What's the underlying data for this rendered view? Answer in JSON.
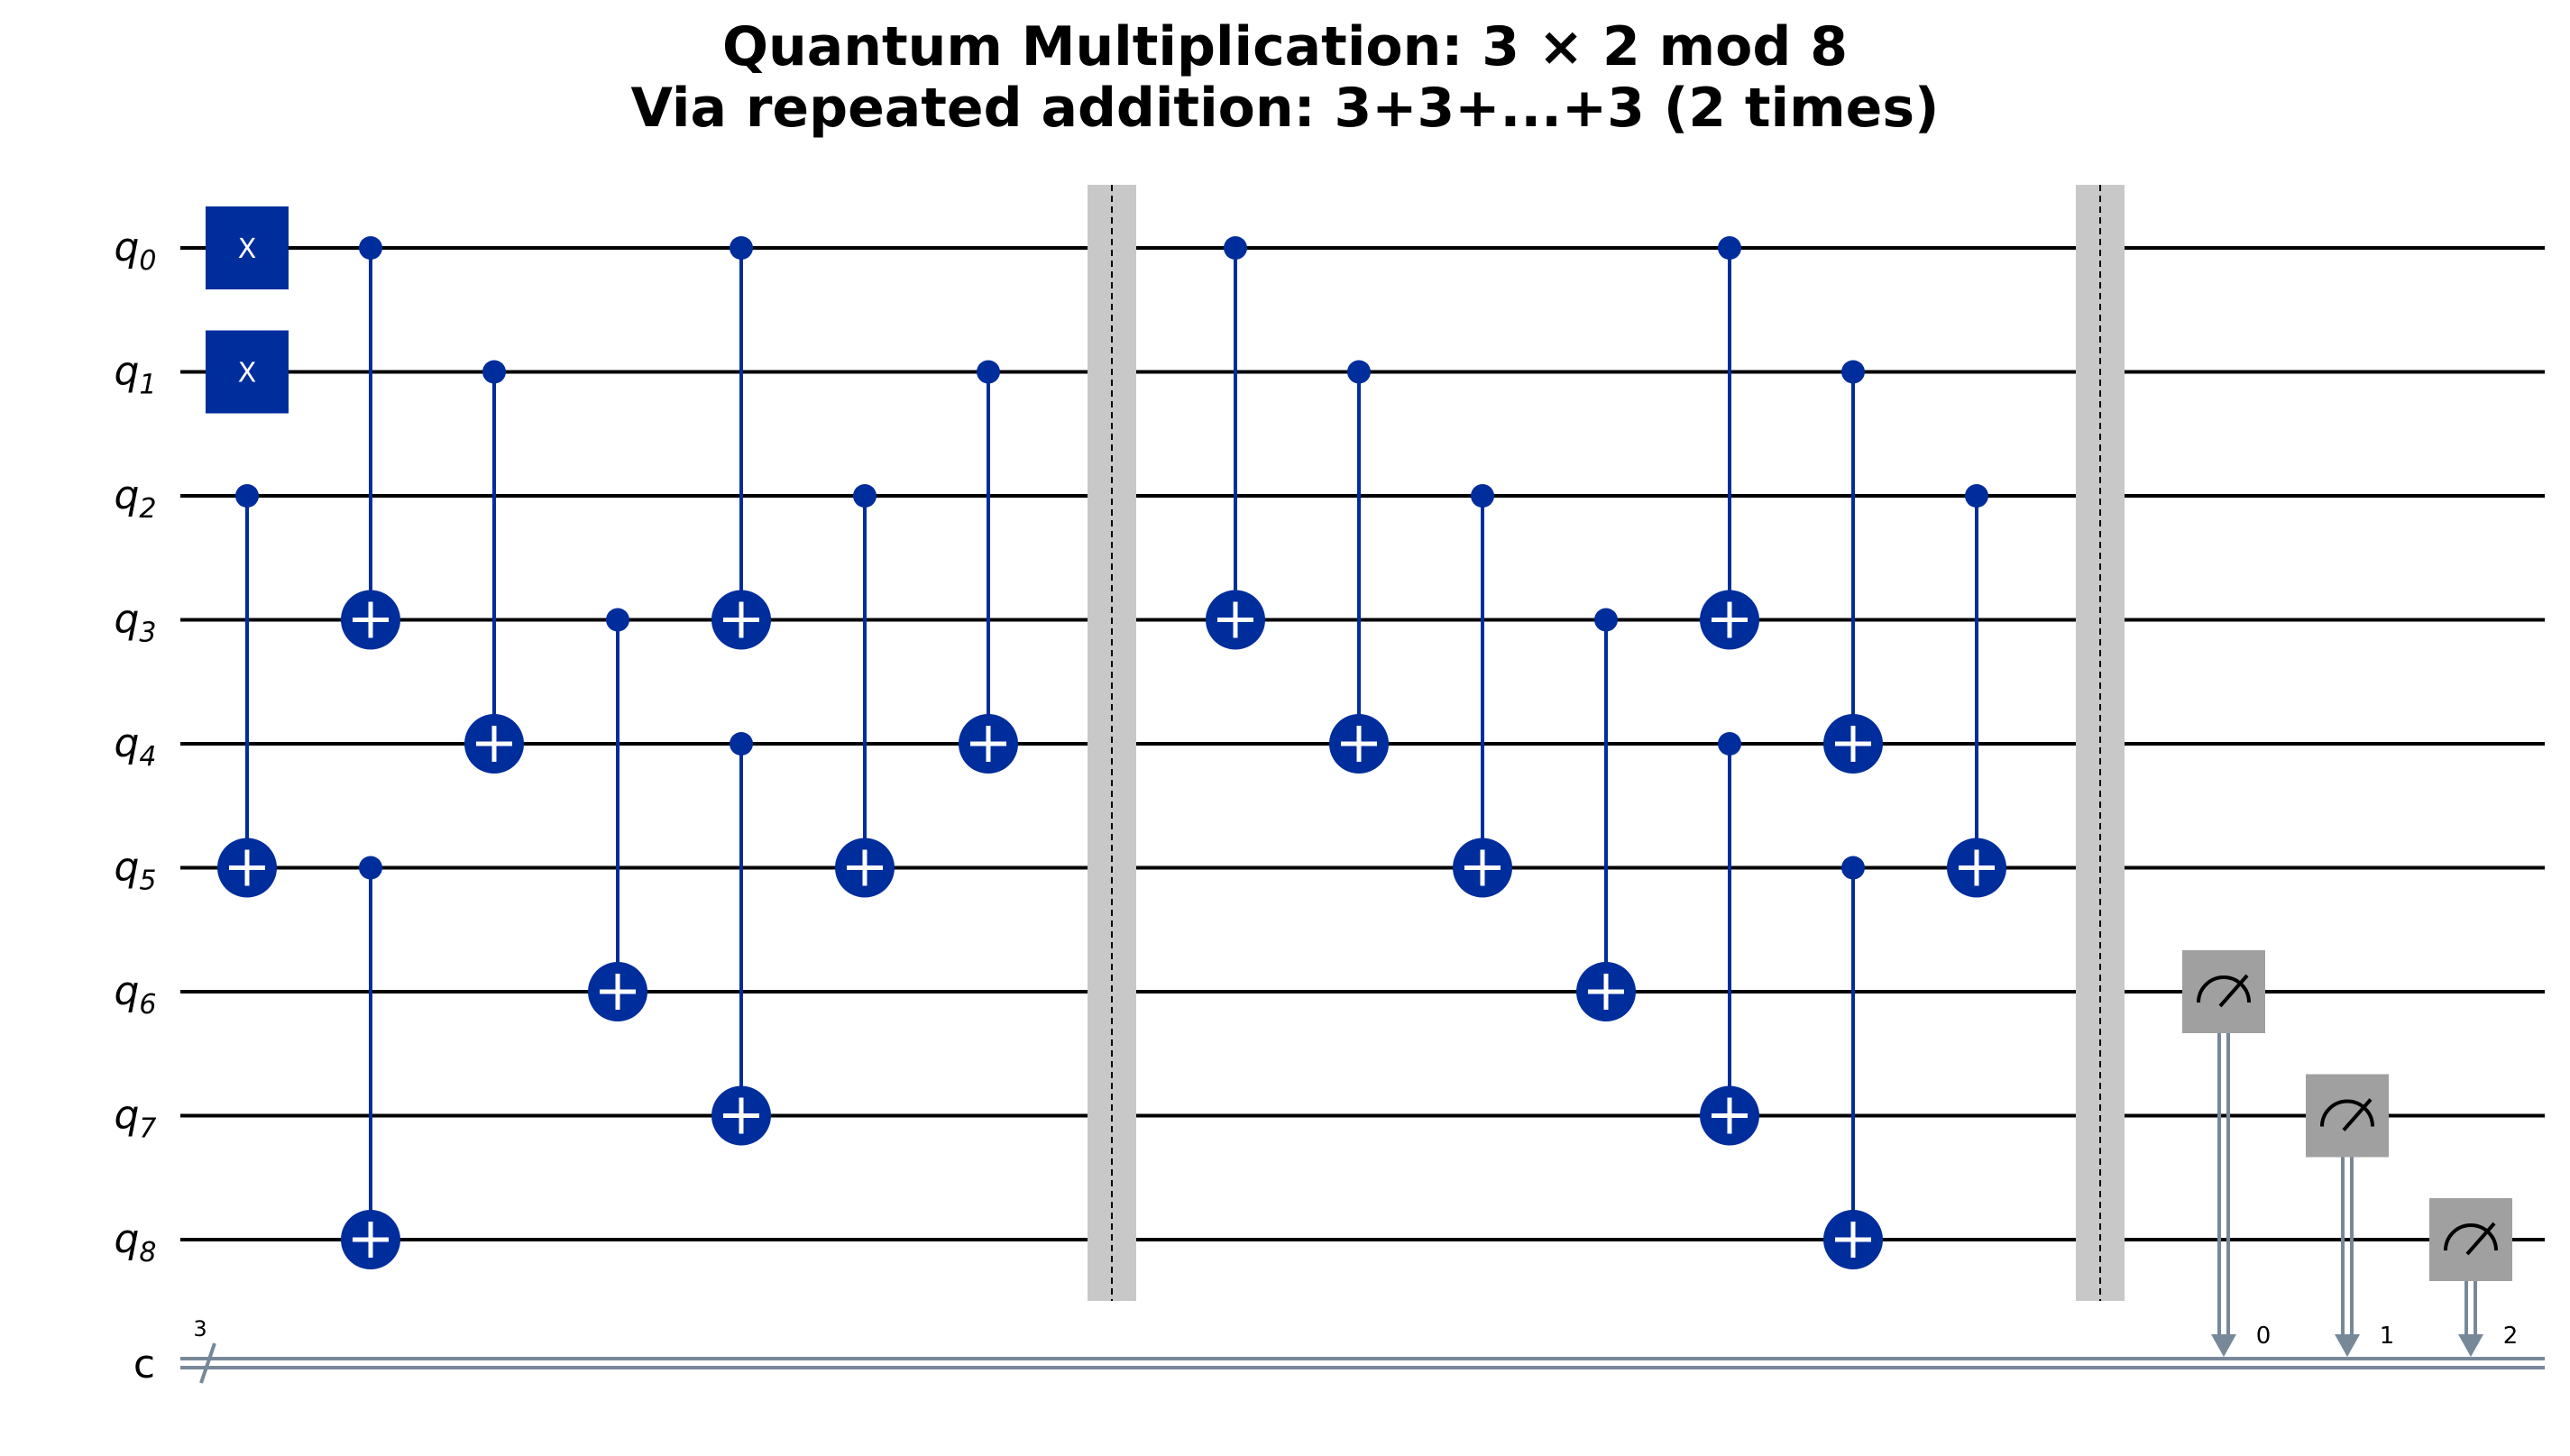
{
  "title": {
    "line1": "Quantum Multiplication: 3 × 2 mod 8",
    "line2": "Via repeated addition: 3+3+...+3 (2 times)"
  },
  "qubits": [
    {
      "prefix": "q",
      "index": "0"
    },
    {
      "prefix": "q",
      "index": "1"
    },
    {
      "prefix": "q",
      "index": "2"
    },
    {
      "prefix": "q",
      "index": "3"
    },
    {
      "prefix": "q",
      "index": "4"
    },
    {
      "prefix": "q",
      "index": "5"
    },
    {
      "prefix": "q",
      "index": "6"
    },
    {
      "prefix": "q",
      "index": "7"
    },
    {
      "prefix": "q",
      "index": "8"
    }
  ],
  "classical_register": {
    "label": "c",
    "width": "3"
  },
  "colors": {
    "gate": "#002d9c",
    "barrier": "#c8c8c8",
    "measure": "#a0a0a0",
    "classical": "#778899",
    "wire": "#000000"
  },
  "gate_label": "X",
  "gates": [
    {
      "type": "x",
      "col": 1,
      "target": 0
    },
    {
      "type": "x",
      "col": 1,
      "target": 1
    },
    {
      "type": "cx",
      "col": 1,
      "control": 2,
      "target": 5
    },
    {
      "type": "cx",
      "col": 2,
      "control": 0,
      "target": 3
    },
    {
      "type": "cx",
      "col": 2,
      "control": 5,
      "target": 8
    },
    {
      "type": "cx",
      "col": 3,
      "control": 1,
      "target": 4
    },
    {
      "type": "cx",
      "col": 4,
      "control": 3,
      "target": 6
    },
    {
      "type": "cx",
      "col": 5,
      "control": 0,
      "target": 3
    },
    {
      "type": "cx",
      "col": 5,
      "control": 4,
      "target": 7
    },
    {
      "type": "cx",
      "col": 6,
      "control": 2,
      "target": 5
    },
    {
      "type": "cx",
      "col": 7,
      "control": 1,
      "target": 4
    },
    {
      "type": "barrier",
      "col": 8
    },
    {
      "type": "cx",
      "col": 9,
      "control": 0,
      "target": 3
    },
    {
      "type": "cx",
      "col": 10,
      "control": 1,
      "target": 4
    },
    {
      "type": "cx",
      "col": 11,
      "control": 2,
      "target": 5
    },
    {
      "type": "cx",
      "col": 12,
      "control": 3,
      "target": 6
    },
    {
      "type": "cx",
      "col": 13,
      "control": 0,
      "target": 3
    },
    {
      "type": "cx",
      "col": 13,
      "control": 4,
      "target": 7
    },
    {
      "type": "cx",
      "col": 14,
      "control": 1,
      "target": 4
    },
    {
      "type": "cx",
      "col": 14,
      "control": 5,
      "target": 8
    },
    {
      "type": "cx",
      "col": 15,
      "control": 2,
      "target": 5
    },
    {
      "type": "barrier",
      "col": 16
    },
    {
      "type": "measure",
      "col": 17,
      "qubit": 6,
      "cbit": "0"
    },
    {
      "type": "measure",
      "col": 18,
      "qubit": 7,
      "cbit": "1"
    },
    {
      "type": "measure",
      "col": 19,
      "qubit": 8,
      "cbit": "2"
    }
  ]
}
